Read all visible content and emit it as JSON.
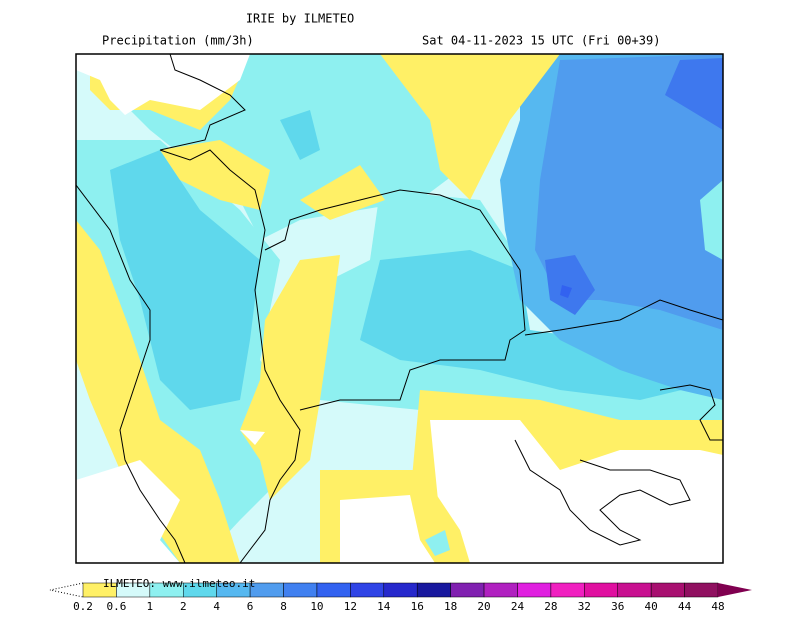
{
  "header": {
    "title": "IRIE by ILMETEO",
    "subtitle": "Precipitation (mm/3h)",
    "valid_time": "Sat 04-11-2023 15 UTC (Fri 00+39)"
  },
  "legend": {
    "credit": "ILMETEO: www.ilmeteo.it",
    "labels": [
      "0.2",
      "0.6",
      "1",
      "2",
      "4",
      "6",
      "8",
      "10",
      "12",
      "14",
      "16",
      "18",
      "20",
      "24",
      "28",
      "32",
      "36",
      "40",
      "44",
      "48"
    ],
    "colors": [
      "#fff066",
      "#d5fafa",
      "#8ef0f0",
      "#5fd8ec",
      "#56b8f0",
      "#509cee",
      "#4080f0",
      "#3262f0",
      "#2f44e6",
      "#2628cc",
      "#18189e",
      "#8020b0",
      "#b020c0",
      "#e020e0",
      "#f020c0",
      "#e010a0",
      "#c81090",
      "#a81070",
      "#901060"
    ],
    "arrow_color": "#800050"
  }
}
